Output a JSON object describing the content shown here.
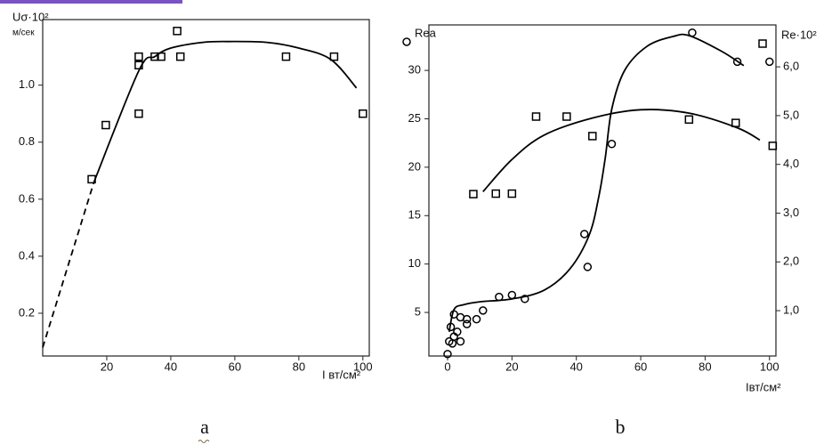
{
  "chart_data": [
    {
      "type": "scatter",
      "y_label": "Uσ·10²",
      "y_unit": "м/сек",
      "x_label": "I вт/см²",
      "panel_label": "a",
      "xlim": [
        0,
        102
      ],
      "ylim": [
        0.05,
        1.23
      ],
      "xticks": [
        20,
        40,
        60,
        80,
        100
      ],
      "yticks": [
        0.2,
        0.4,
        0.6,
        0.8,
        {
          "value": 1,
          "label": "1.0"
        }
      ],
      "grid": false,
      "series": [
        {
          "marker": "square",
          "color": "#000000",
          "x": [
            15.3,
            19.7,
            30,
            30,
            30,
            35,
            37,
            42,
            43,
            76,
            91,
            100
          ],
          "values": [
            0.67,
            0.86,
            1.1,
            1.07,
            0.9,
            1.1,
            1.1,
            1.19,
            1.1,
            1.1,
            1.1,
            0.9
          ]
        },
        {
          "line": "solid",
          "color": "#000000",
          "x": [
            16,
            30,
            35,
            40,
            50,
            58,
            70,
            80,
            90,
            98
          ],
          "values": [
            0.66,
            1.05,
            1.1,
            1.13,
            1.15,
            1.153,
            1.15,
            1.13,
            1.09,
            0.99
          ]
        },
        {
          "line": "dashed",
          "color": "#000000",
          "x": [
            0,
            16
          ],
          "values": [
            0.08,
            0.66
          ]
        }
      ]
    },
    {
      "type": "scatter",
      "y_label": "Rea",
      "y2_label": "Re·10²",
      "x_label": "Iвт/см²",
      "panel_label": "b",
      "xlim": [
        -5.8,
        102
      ],
      "ylim": [
        0.5,
        34.7
      ],
      "y2lim": [
        0.07,
        6.86
      ],
      "xticks": [
        0,
        20,
        40,
        60,
        80,
        100
      ],
      "yticks": [
        5,
        10,
        15,
        20,
        25,
        30
      ],
      "y2ticks": [
        {
          "value": 1,
          "label": "1,0"
        },
        {
          "value": 2,
          "label": "2,0"
        },
        {
          "value": 3,
          "label": "3,0"
        },
        {
          "value": 4,
          "label": "4,0"
        },
        {
          "value": 5,
          "label": "5,0"
        },
        {
          "value": 6,
          "label": "6,0"
        }
      ],
      "grid": false,
      "series": [
        {
          "marker": "circle",
          "color": "#000000",
          "x": [
            0,
            0.5,
            1,
            1.5,
            2,
            2,
            3,
            4,
            4,
            6,
            6,
            9,
            11,
            16,
            20,
            24,
            42.5,
            43.5,
            51,
            76,
            90,
            100
          ],
          "values": [
            0.7,
            2,
            3.5,
            1.8,
            2.5,
            4.8,
            3,
            4.5,
            2,
            3.8,
            4.3,
            4.3,
            5.2,
            6.6,
            6.8,
            6.4,
            13.1,
            9.7,
            22.4,
            33.9,
            30.9,
            30.9
          ]
        },
        {
          "line": "solid",
          "color": "#000000",
          "x": [
            0.5,
            2,
            5,
            10,
            20,
            30,
            38,
            44,
            47,
            49,
            51,
            55,
            62,
            70,
            75,
            85,
            92
          ],
          "values": [
            3,
            5.3,
            5.8,
            6.1,
            6.4,
            7.3,
            9.5,
            13,
            17,
            21,
            26,
            30,
            32.5,
            33.5,
            33.6,
            32,
            30.5
          ]
        },
        {
          "marker": "square",
          "axis": "y2",
          "color": "#000000",
          "x": [
            8,
            15,
            20,
            27.5,
            37,
            45,
            75,
            89.5,
            101
          ],
          "values": [
            3.39,
            3.4,
            3.4,
            4.98,
            4.98,
            4.58,
            4.92,
            4.85,
            4.38
          ]
        },
        {
          "line": "solid",
          "axis": "y2",
          "color": "#000000",
          "x": [
            11,
            20,
            30,
            45,
            60,
            75,
            90,
            97
          ],
          "values": [
            3.44,
            4.1,
            4.6,
            4.95,
            5.12,
            5.05,
            4.75,
            4.5
          ]
        }
      ]
    }
  ]
}
